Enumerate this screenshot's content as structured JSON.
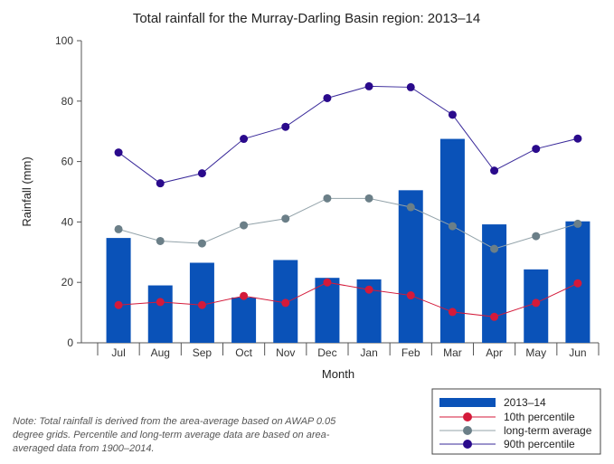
{
  "chart_data": {
    "type": "bar",
    "title": "Total rainfall for the Murray-Darling Basin region: 2013–14",
    "xlabel": "Month",
    "ylabel": "Rainfall (mm)",
    "ylim": [
      0,
      100
    ],
    "yticks": [
      0,
      20,
      40,
      60,
      80,
      100
    ],
    "grid": false,
    "legend_position": "bottom-right",
    "categories": [
      "Jul",
      "Aug",
      "Sep",
      "Oct",
      "Nov",
      "Dec",
      "Jan",
      "Feb",
      "Mar",
      "Apr",
      "May",
      "Jun"
    ],
    "series": [
      {
        "name": "2013–14",
        "kind": "bar",
        "color": "#0a52b8",
        "values": [
          34.7,
          19.0,
          26.5,
          15.0,
          27.4,
          21.5,
          21.0,
          50.5,
          67.5,
          39.2,
          24.3,
          40.2
        ]
      },
      {
        "name": "10th percentile",
        "kind": "line",
        "color": "#d41a3a",
        "line_color": "#d41a3a",
        "values": [
          12.5,
          13.5,
          12.5,
          15.5,
          13.2,
          20.0,
          17.6,
          15.7,
          10.2,
          8.6,
          13.2,
          19.7
        ]
      },
      {
        "name": "long-term average",
        "kind": "line",
        "color": "#6b7f88",
        "line_color": "#93a3aa",
        "values": [
          37.6,
          33.7,
          32.9,
          38.9,
          41.1,
          47.8,
          47.8,
          44.9,
          38.6,
          31.1,
          35.3,
          39.4
        ]
      },
      {
        "name": "90th percentile",
        "kind": "line",
        "color": "#2a0a8c",
        "line_color": "#3a2a9a",
        "values": [
          63.0,
          52.8,
          56.1,
          67.5,
          71.5,
          81.0,
          84.9,
          84.6,
          75.5,
          57.0,
          64.2,
          67.6
        ]
      }
    ]
  },
  "note": "Note: Total rainfall is derived from the area-average based on AWAP 0.05 degree grids. Percentile and long-term average data are based on area-averaged data from 1900–2014."
}
